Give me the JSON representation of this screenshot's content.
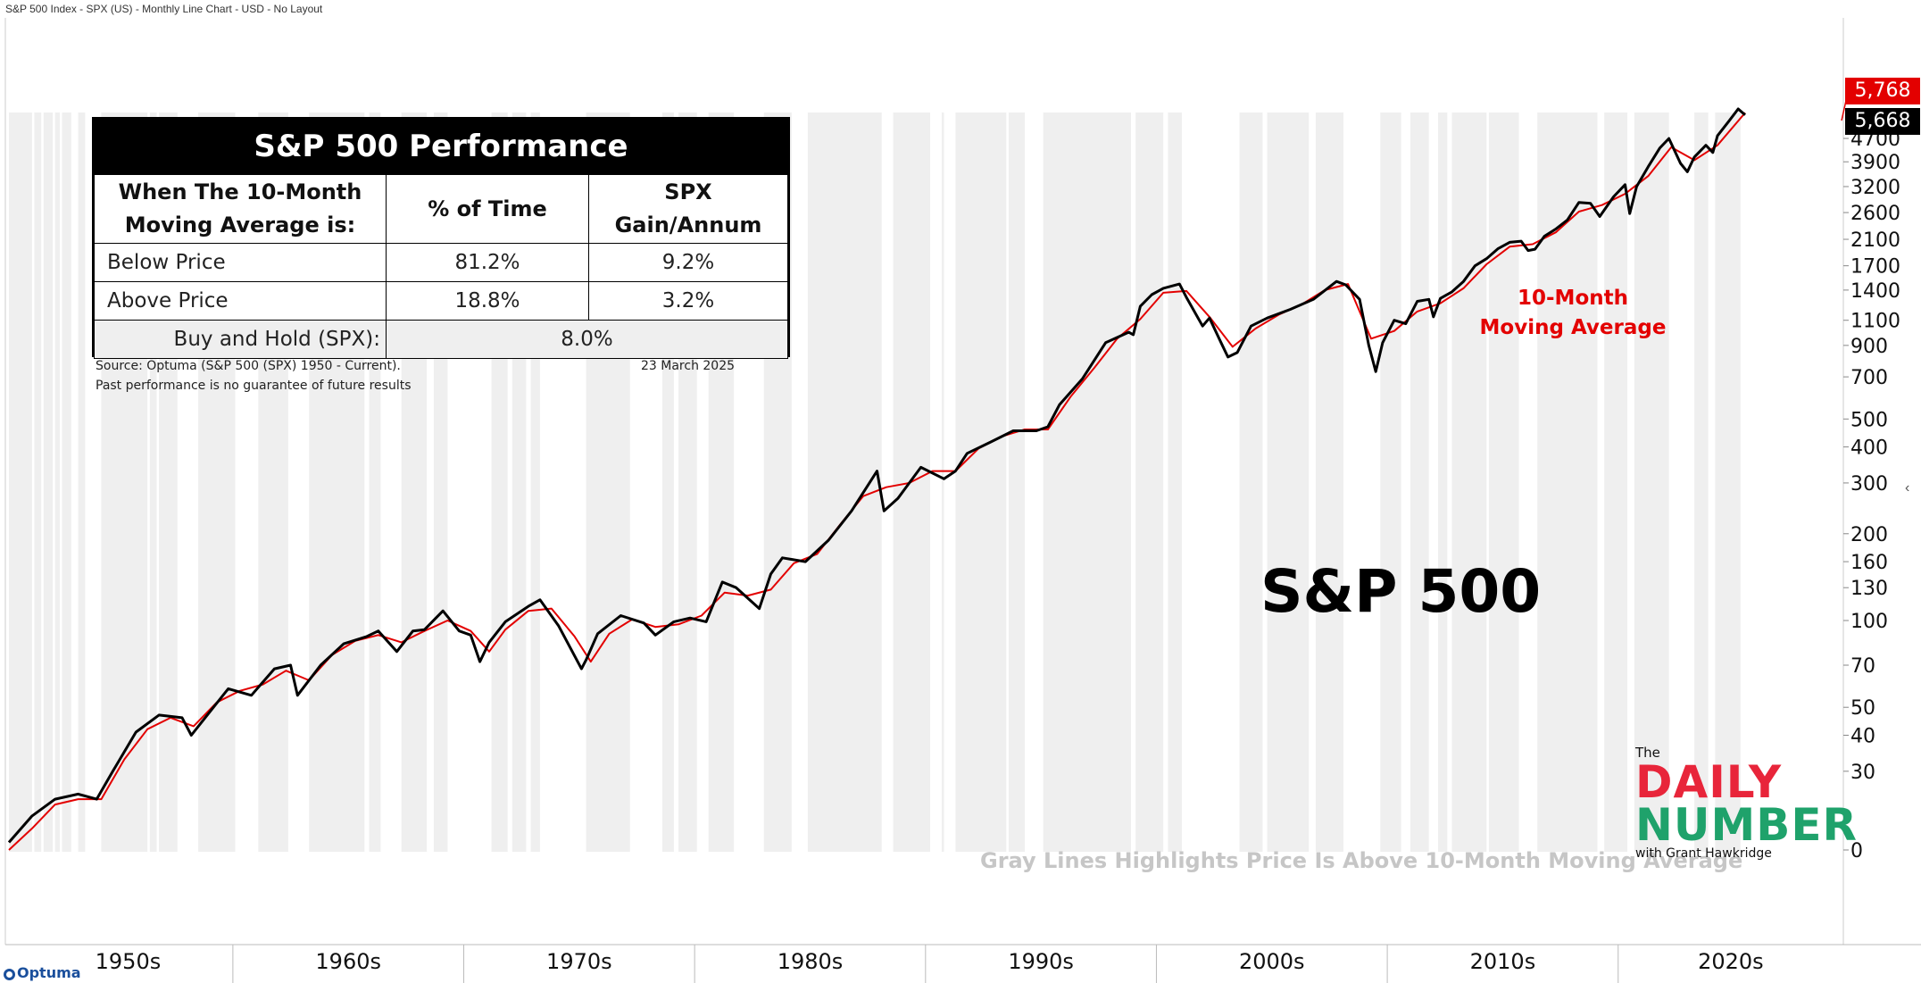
{
  "chart_title_bar": "S&P 500 Index - SPX (US) - Monthly Line Chart - USD - No Layout",
  "vendor_logo": "Optuma",
  "chart_data": {
    "type": "line",
    "title": "S&P 500",
    "y_scale": "log",
    "x_range": [
      1950,
      2025.2
    ],
    "y_ticks": [
      0,
      30,
      40,
      50,
      70,
      100,
      130,
      160,
      200,
      300,
      400,
      500,
      700,
      900,
      1100,
      1400,
      1700,
      2100,
      2600,
      3200,
      3900,
      4700
    ],
    "x_tick_labels": [
      "1950s",
      "1960s",
      "1970s",
      "1980s",
      "1990s",
      "2000s",
      "2010s",
      "2020s"
    ],
    "last_values": {
      "price": "5,668",
      "moving_average": "5,768"
    },
    "annotation": "10-Month\nMoving Average",
    "footnote": "Gray Lines Highlights Price Is Above 10-Month Moving Average",
    "series": [
      {
        "name": "S&P 500",
        "color": "#000000",
        "points": [
          [
            1950.0,
            17
          ],
          [
            1951.0,
            21
          ],
          [
            1952.0,
            24
          ],
          [
            1953.0,
            25
          ],
          [
            1953.8,
            24
          ],
          [
            1954.5,
            30
          ],
          [
            1955.5,
            41
          ],
          [
            1956.5,
            47
          ],
          [
            1957.5,
            46
          ],
          [
            1957.9,
            40
          ],
          [
            1958.5,
            46
          ],
          [
            1959.5,
            58
          ],
          [
            1960.5,
            55
          ],
          [
            1961.5,
            68
          ],
          [
            1962.2,
            70
          ],
          [
            1962.5,
            55
          ],
          [
            1963.5,
            70
          ],
          [
            1964.5,
            83
          ],
          [
            1965.5,
            88
          ],
          [
            1966.0,
            92
          ],
          [
            1966.8,
            78
          ],
          [
            1967.5,
            92
          ],
          [
            1968.0,
            93
          ],
          [
            1968.8,
            108
          ],
          [
            1969.5,
            92
          ],
          [
            1970.0,
            89
          ],
          [
            1970.4,
            72
          ],
          [
            1970.8,
            84
          ],
          [
            1971.5,
            99
          ],
          [
            1972.5,
            112
          ],
          [
            1973.0,
            118
          ],
          [
            1973.8,
            96
          ],
          [
            1974.8,
            68
          ],
          [
            1975.0,
            73
          ],
          [
            1975.5,
            90
          ],
          [
            1976.5,
            104
          ],
          [
            1977.5,
            98
          ],
          [
            1978.0,
            89
          ],
          [
            1978.8,
            99
          ],
          [
            1979.5,
            102
          ],
          [
            1980.2,
            99
          ],
          [
            1980.9,
            136
          ],
          [
            1981.5,
            130
          ],
          [
            1982.5,
            110
          ],
          [
            1983.0,
            145
          ],
          [
            1983.5,
            165
          ],
          [
            1984.5,
            160
          ],
          [
            1985.5,
            190
          ],
          [
            1986.5,
            240
          ],
          [
            1987.6,
            330
          ],
          [
            1987.9,
            240
          ],
          [
            1988.5,
            265
          ],
          [
            1989.5,
            340
          ],
          [
            1990.5,
            310
          ],
          [
            1991.0,
            330
          ],
          [
            1991.5,
            380
          ],
          [
            1992.5,
            415
          ],
          [
            1993.5,
            455
          ],
          [
            1994.5,
            455
          ],
          [
            1995.0,
            470
          ],
          [
            1995.5,
            560
          ],
          [
            1996.5,
            690
          ],
          [
            1997.5,
            920
          ],
          [
            1998.5,
            1000
          ],
          [
            1998.7,
            980
          ],
          [
            1999.0,
            1230
          ],
          [
            1999.5,
            1350
          ],
          [
            2000.0,
            1420
          ],
          [
            2000.7,
            1470
          ],
          [
            2001.0,
            1320
          ],
          [
            2001.7,
            1050
          ],
          [
            2002.0,
            1120
          ],
          [
            2002.5,
            920
          ],
          [
            2002.8,
            820
          ],
          [
            2003.2,
            850
          ],
          [
            2003.8,
            1050
          ],
          [
            2004.5,
            1120
          ],
          [
            2005.5,
            1200
          ],
          [
            2006.5,
            1300
          ],
          [
            2007.5,
            1500
          ],
          [
            2007.9,
            1460
          ],
          [
            2008.5,
            1300
          ],
          [
            2008.9,
            900
          ],
          [
            2009.2,
            730
          ],
          [
            2009.5,
            920
          ],
          [
            2010.0,
            1100
          ],
          [
            2010.5,
            1070
          ],
          [
            2011.0,
            1280
          ],
          [
            2011.5,
            1300
          ],
          [
            2011.7,
            1130
          ],
          [
            2012.0,
            1310
          ],
          [
            2012.5,
            1380
          ],
          [
            2013.0,
            1500
          ],
          [
            2013.5,
            1700
          ],
          [
            2014.0,
            1800
          ],
          [
            2014.5,
            1950
          ],
          [
            2015.0,
            2050
          ],
          [
            2015.5,
            2070
          ],
          [
            2015.8,
            1920
          ],
          [
            2016.1,
            1940
          ],
          [
            2016.5,
            2150
          ],
          [
            2017.0,
            2280
          ],
          [
            2017.5,
            2450
          ],
          [
            2018.0,
            2820
          ],
          [
            2018.5,
            2800
          ],
          [
            2018.9,
            2520
          ],
          [
            2019.5,
            2950
          ],
          [
            2020.0,
            3250
          ],
          [
            2020.2,
            2580
          ],
          [
            2020.5,
            3200
          ],
          [
            2021.0,
            3750
          ],
          [
            2021.5,
            4350
          ],
          [
            2021.9,
            4700
          ],
          [
            2022.4,
            3850
          ],
          [
            2022.7,
            3600
          ],
          [
            2023.0,
            4050
          ],
          [
            2023.5,
            4450
          ],
          [
            2023.8,
            4200
          ],
          [
            2024.0,
            4800
          ],
          [
            2024.5,
            5400
          ],
          [
            2024.9,
            5950
          ],
          [
            2025.2,
            5668
          ]
        ]
      },
      {
        "name": "10-Month Moving Average",
        "color": "#e30000",
        "points": [
          [
            1950.0,
            16
          ],
          [
            1951.0,
            19
          ],
          [
            1952.0,
            23
          ],
          [
            1953.0,
            24
          ],
          [
            1954.0,
            24
          ],
          [
            1955.0,
            33
          ],
          [
            1956.0,
            42
          ],
          [
            1957.0,
            46
          ],
          [
            1958.0,
            43
          ],
          [
            1959.0,
            52
          ],
          [
            1960.0,
            57
          ],
          [
            1961.0,
            60
          ],
          [
            1962.0,
            67
          ],
          [
            1963.0,
            62
          ],
          [
            1964.0,
            76
          ],
          [
            1965.0,
            85
          ],
          [
            1966.0,
            89
          ],
          [
            1967.0,
            84
          ],
          [
            1968.0,
            92
          ],
          [
            1969.0,
            100
          ],
          [
            1970.0,
            92
          ],
          [
            1970.8,
            78
          ],
          [
            1971.5,
            93
          ],
          [
            1972.5,
            108
          ],
          [
            1973.5,
            110
          ],
          [
            1974.5,
            88
          ],
          [
            1975.2,
            72
          ],
          [
            1976.0,
            90
          ],
          [
            1977.0,
            101
          ],
          [
            1978.0,
            95
          ],
          [
            1979.0,
            97
          ],
          [
            1980.0,
            104
          ],
          [
            1981.0,
            125
          ],
          [
            1982.0,
            122
          ],
          [
            1983.0,
            128
          ],
          [
            1984.0,
            158
          ],
          [
            1985.0,
            170
          ],
          [
            1986.0,
            215
          ],
          [
            1987.0,
            270
          ],
          [
            1988.0,
            290
          ],
          [
            1989.0,
            300
          ],
          [
            1990.0,
            330
          ],
          [
            1991.0,
            330
          ],
          [
            1992.0,
            395
          ],
          [
            1993.0,
            435
          ],
          [
            1994.0,
            460
          ],
          [
            1995.0,
            460
          ],
          [
            1996.0,
            600
          ],
          [
            1997.0,
            750
          ],
          [
            1998.0,
            950
          ],
          [
            1999.0,
            1110
          ],
          [
            2000.0,
            1370
          ],
          [
            2001.0,
            1390
          ],
          [
            2002.0,
            1130
          ],
          [
            2003.0,
            890
          ],
          [
            2004.0,
            1030
          ],
          [
            2005.0,
            1150
          ],
          [
            2006.0,
            1250
          ],
          [
            2007.0,
            1400
          ],
          [
            2008.0,
            1470
          ],
          [
            2009.0,
            950
          ],
          [
            2010.0,
            1010
          ],
          [
            2011.0,
            1180
          ],
          [
            2012.0,
            1260
          ],
          [
            2013.0,
            1420
          ],
          [
            2014.0,
            1720
          ],
          [
            2015.0,
            1980
          ],
          [
            2016.0,
            2020
          ],
          [
            2017.0,
            2220
          ],
          [
            2018.0,
            2620
          ],
          [
            2019.0,
            2760
          ],
          [
            2020.0,
            3020
          ],
          [
            2021.0,
            3480
          ],
          [
            2022.0,
            4380
          ],
          [
            2023.0,
            3950
          ],
          [
            2024.0,
            4450
          ],
          [
            2025.2,
            5768
          ]
        ]
      }
    ],
    "above_ma_bands": [
      [
        1950.0,
        1951.0
      ],
      [
        1951.1,
        1951.4
      ],
      [
        1951.5,
        1951.9
      ],
      [
        1952.0,
        1952.2
      ],
      [
        1952.3,
        1952.7
      ],
      [
        1953.0,
        1953.3
      ],
      [
        1954.0,
        1956.0
      ],
      [
        1956.1,
        1956.4
      ],
      [
        1956.5,
        1957.3
      ],
      [
        1958.2,
        1959.8
      ],
      [
        1960.8,
        1962.1
      ],
      [
        1963.0,
        1965.4
      ],
      [
        1965.6,
        1966.1
      ],
      [
        1967.0,
        1968.1
      ],
      [
        1968.4,
        1969.0
      ],
      [
        1970.9,
        1971.6
      ],
      [
        1971.8,
        1972.4
      ],
      [
        1972.6,
        1973.0
      ],
      [
        1975.0,
        1976.9
      ],
      [
        1978.3,
        1978.8
      ],
      [
        1979.0,
        1979.8
      ],
      [
        1980.3,
        1981.4
      ],
      [
        1982.7,
        1983.9
      ],
      [
        1984.6,
        1987.8
      ],
      [
        1988.3,
        1989.9
      ],
      [
        1990.4,
        1990.5
      ],
      [
        1991.0,
        1993.2
      ],
      [
        1993.3,
        1994.0
      ],
      [
        1994.8,
        1998.6
      ],
      [
        1998.8,
        2000.0
      ],
      [
        2000.2,
        2000.8
      ],
      [
        2003.3,
        2004.3
      ],
      [
        2004.5,
        2006.3
      ],
      [
        2006.6,
        2007.8
      ],
      [
        2009.4,
        2010.3
      ],
      [
        2010.7,
        2011.5
      ],
      [
        2011.9,
        2012.3
      ],
      [
        2012.5,
        2014.0
      ],
      [
        2014.1,
        2015.4
      ],
      [
        2016.2,
        2018.8
      ],
      [
        2019.1,
        2020.1
      ],
      [
        2020.4,
        2021.9
      ],
      [
        2023.0,
        2023.6
      ],
      [
        2023.9,
        2025.0
      ]
    ]
  },
  "performance_table": {
    "title": "S&P 500 Performance",
    "header": {
      "c1": "When The 10-Month\nMoving Average is:",
      "c2": "% of Time",
      "c3": "SPX Gain/Annum"
    },
    "rows": [
      {
        "label": "Below Price",
        "pct_time": "81.2%",
        "gain": "9.2%"
      },
      {
        "label": "Above Price",
        "pct_time": "18.8%",
        "gain": "3.2%"
      }
    ],
    "buy_hold": {
      "label": "Buy and Hold (SPX):",
      "value": "8.0%"
    },
    "source": "Source: Optuma (S&P 500 (SPX) 1950 - Current).",
    "date": "23 March 2025",
    "disclaimer": "Past performance is no guarantee of future results"
  },
  "branding": {
    "the": "The",
    "word1": "DAILY",
    "word2": "NUMBER",
    "byline": "with Grant Hawkridge"
  },
  "colors": {
    "price": "#000000",
    "ma": "#e30000",
    "band": "#efefef",
    "ma_badge": "#e30000",
    "price_badge": "#000000"
  }
}
